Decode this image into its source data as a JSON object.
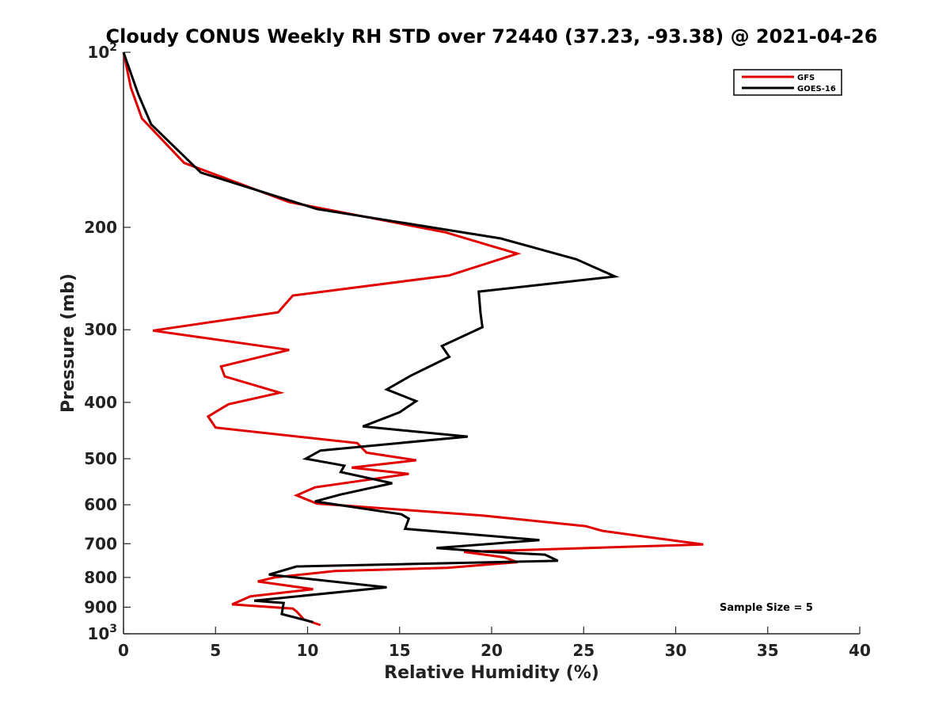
{
  "chart_data": {
    "type": "line",
    "title": "Cloudy CONUS Weekly RH STD over 72440 (37.23, -93.38) @ 2021-04-26",
    "xlabel": "Relative Humidity (%)",
    "ylabel": "Pressure (mb)",
    "xlim": [
      0,
      40
    ],
    "ylim": [
      100,
      1000
    ],
    "y_scale": "log",
    "y_reversed": true,
    "grid": false,
    "legend_position": "top-right",
    "x_ticks": [
      0,
      5,
      10,
      15,
      20,
      25,
      30,
      35,
      40
    ],
    "y_ticks": [
      {
        "value": 100,
        "label_base": "10",
        "label_exp": "2"
      },
      {
        "value": 200,
        "label": "200"
      },
      {
        "value": 300,
        "label": "300"
      },
      {
        "value": 400,
        "label": "400"
      },
      {
        "value": 500,
        "label": "500"
      },
      {
        "value": 600,
        "label": "600"
      },
      {
        "value": 700,
        "label": "700"
      },
      {
        "value": 800,
        "label": "800"
      },
      {
        "value": 900,
        "label": "900"
      },
      {
        "value": 1000,
        "label_base": "10",
        "label_exp": "3"
      }
    ],
    "annotation": "Sample Size = 5",
    "series": [
      {
        "name": "GFS",
        "color": "#e00000",
        "points": [
          [
            0,
            100
          ],
          [
            0.4,
            115
          ],
          [
            1,
            130
          ],
          [
            3.3,
            155
          ],
          [
            9,
            181
          ],
          [
            17.5,
            204
          ],
          [
            21.4,
            222
          ],
          [
            17.7,
            242
          ],
          [
            9.2,
            262
          ],
          [
            8.4,
            280
          ],
          [
            1.6,
            301
          ],
          [
            9,
            325
          ],
          [
            5.3,
            347
          ],
          [
            5.5,
            361
          ],
          [
            8.5,
            385
          ],
          [
            5.7,
            403
          ],
          [
            4.6,
            423
          ],
          [
            5,
            442
          ],
          [
            12.7,
            470
          ],
          [
            13.2,
            488
          ],
          [
            15.9,
            503
          ],
          [
            12.4,
            518
          ],
          [
            15.5,
            531
          ],
          [
            10.4,
            560
          ],
          [
            9.4,
            578
          ],
          [
            10.5,
            597
          ],
          [
            19.5,
            626
          ],
          [
            25.1,
            653
          ],
          [
            26,
            665
          ],
          [
            28.8,
            684
          ],
          [
            31.5,
            702
          ],
          [
            18.5,
            723
          ],
          [
            20.7,
            739
          ],
          [
            21.4,
            753
          ],
          [
            17.6,
            770
          ],
          [
            11.5,
            780
          ],
          [
            8.2,
            800
          ],
          [
            7.3,
            813
          ],
          [
            10.3,
            838
          ],
          [
            6.9,
            862
          ],
          [
            5.9,
            890
          ],
          [
            9.2,
            905
          ],
          [
            9.4,
            915
          ],
          [
            9.8,
            945
          ],
          [
            10.7,
            966
          ]
        ]
      },
      {
        "name": "GOES-16",
        "color": "#000000",
        "points": [
          [
            0,
            100
          ],
          [
            0.8,
            118
          ],
          [
            1.5,
            133
          ],
          [
            4.2,
            161
          ],
          [
            10.5,
            186
          ],
          [
            20.5,
            209
          ],
          [
            24.6,
            227
          ],
          [
            26.7,
            243
          ],
          [
            19.3,
            258
          ],
          [
            19.4,
            281
          ],
          [
            19.5,
            297
          ],
          [
            17.3,
            320
          ],
          [
            17.7,
            334
          ],
          [
            15.6,
            360
          ],
          [
            14.3,
            380
          ],
          [
            15.9,
            398
          ],
          [
            15,
            416
          ],
          [
            13,
            440
          ],
          [
            18.7,
            458
          ],
          [
            10.7,
            484
          ],
          [
            9.9,
            500
          ],
          [
            12,
            514
          ],
          [
            11.8,
            527
          ],
          [
            14.6,
            551
          ],
          [
            11.8,
            576
          ],
          [
            10.4,
            592
          ],
          [
            15.1,
            623
          ],
          [
            15.5,
            634
          ],
          [
            15.3,
            660
          ],
          [
            22.6,
            690
          ],
          [
            17,
            712
          ],
          [
            19.6,
            722
          ],
          [
            22.9,
            731
          ],
          [
            23.6,
            749
          ],
          [
            9.4,
            766
          ],
          [
            7.9,
            791
          ],
          [
            14.3,
            832
          ],
          [
            7.1,
            877
          ],
          [
            8.7,
            885
          ],
          [
            8.6,
            925
          ],
          [
            10.3,
            955
          ]
        ]
      }
    ]
  }
}
